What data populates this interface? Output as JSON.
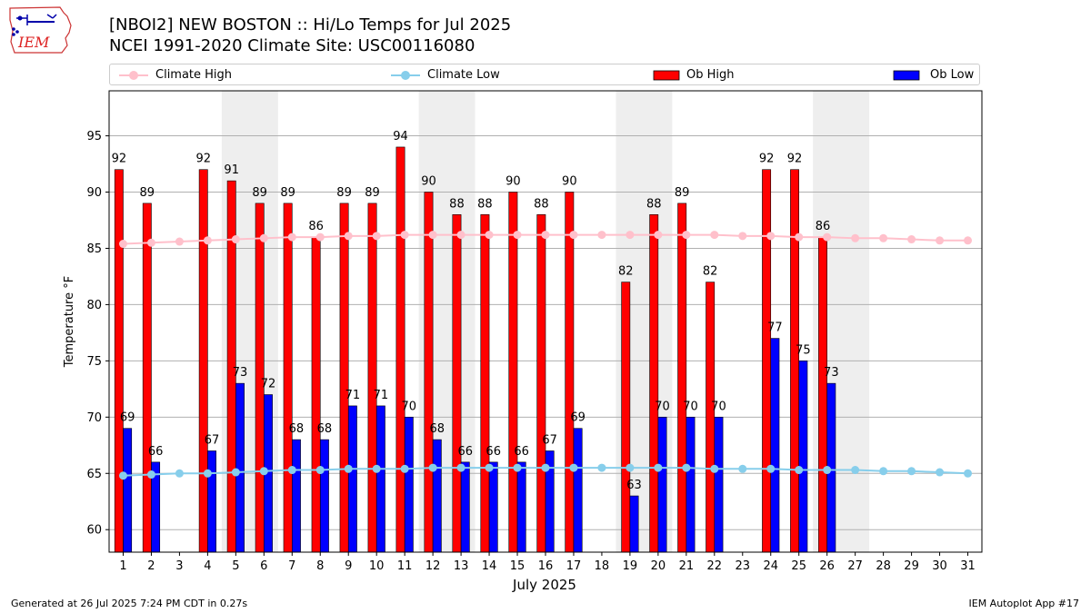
{
  "header": {
    "logo_text": "IEM",
    "title_line1": "[NBOI2] NEW BOSTON :: Hi/Lo Temps for Jul 2025",
    "title_line2": "NCEI 1991-2020 Climate Site: USC00116080"
  },
  "footer": {
    "generated": "Generated at 26 Jul 2025 7:24 PM CDT in 0.27s",
    "app": "IEM Autoplot App #17"
  },
  "colors": {
    "ob_high": "#ff0000",
    "ob_low": "#0000ff",
    "climate_high": "#ffc0cb",
    "climate_low": "#87ceeb",
    "weekend_shade": "#eeeeee",
    "grid": "#b0b0b0"
  },
  "chart_data": {
    "type": "bar",
    "xlabel": "July 2025",
    "ylabel": "Temperature °F",
    "xlim": [
      0.5,
      31.5
    ],
    "ylim": [
      58,
      99
    ],
    "yticks": [
      60,
      65,
      70,
      75,
      80,
      85,
      90,
      95
    ],
    "grid": "y",
    "legend_position": "top",
    "days": [
      1,
      2,
      3,
      4,
      5,
      6,
      7,
      8,
      9,
      10,
      11,
      12,
      13,
      14,
      15,
      16,
      17,
      18,
      19,
      20,
      21,
      22,
      23,
      24,
      25,
      26,
      27,
      28,
      29,
      30,
      31
    ],
    "weekend_shaded_days": [
      [
        5,
        6
      ],
      [
        12,
        13
      ],
      [
        19,
        20
      ],
      [
        26,
        27
      ]
    ],
    "series": [
      {
        "name": "Climate High",
        "kind": "line",
        "values": [
          85.4,
          85.5,
          85.6,
          85.7,
          85.8,
          85.9,
          86.0,
          86.0,
          86.1,
          86.1,
          86.2,
          86.2,
          86.2,
          86.2,
          86.2,
          86.2,
          86.2,
          86.2,
          86.2,
          86.2,
          86.2,
          86.2,
          86.1,
          86.1,
          86.0,
          86.0,
          85.9,
          85.9,
          85.8,
          85.7,
          85.7
        ]
      },
      {
        "name": "Climate Low",
        "kind": "line",
        "values": [
          64.8,
          64.9,
          65.0,
          65.0,
          65.1,
          65.2,
          65.3,
          65.3,
          65.4,
          65.4,
          65.4,
          65.5,
          65.5,
          65.5,
          65.5,
          65.5,
          65.5,
          65.5,
          65.5,
          65.5,
          65.5,
          65.4,
          65.4,
          65.4,
          65.3,
          65.3,
          65.3,
          65.2,
          65.2,
          65.1,
          65.0
        ]
      },
      {
        "name": "Ob High",
        "kind": "bar",
        "values": [
          92,
          89,
          null,
          92,
          91,
          89,
          89,
          86,
          89,
          89,
          94,
          90,
          88,
          88,
          90,
          88,
          90,
          null,
          82,
          88,
          89,
          82,
          null,
          92,
          92,
          86,
          null,
          null,
          null,
          null,
          null
        ]
      },
      {
        "name": "Ob Low",
        "kind": "bar",
        "values": [
          69,
          66,
          null,
          67,
          73,
          72,
          68,
          68,
          71,
          71,
          70,
          68,
          66,
          66,
          66,
          67,
          69,
          null,
          63,
          70,
          70,
          70,
          null,
          77,
          75,
          73,
          null,
          null,
          null,
          null,
          null
        ]
      }
    ]
  }
}
